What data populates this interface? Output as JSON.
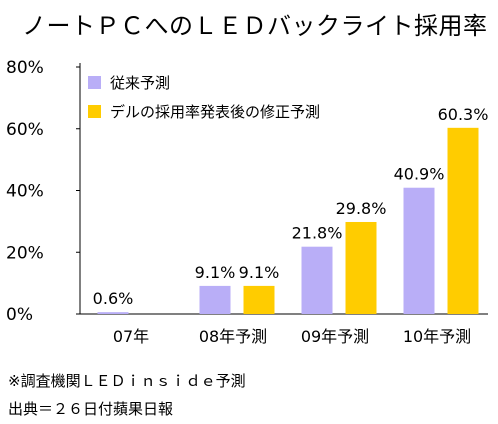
{
  "chart_data": {
    "type": "bar",
    "title": "ノートＰＣへのＬＥＤバックライト採用率",
    "categories": [
      "07年",
      "08年予測",
      "09年予測",
      "10年予測"
    ],
    "ylim": [
      0,
      80
    ],
    "yticks": [
      0,
      20,
      40,
      60,
      80
    ],
    "ytick_labels": [
      "0%",
      "20%",
      "40%",
      "60%",
      "80%"
    ],
    "legend_position": "top-left",
    "series": [
      {
        "name": "従来予測",
        "color": "#b9aef7",
        "values": [
          0.6,
          9.1,
          21.8,
          40.9
        ],
        "labels": [
          "0.6%",
          "9.1%",
          "21.8%",
          "40.9%"
        ]
      },
      {
        "name": "デルの採用率発表後の修正予測",
        "color": "#ffcc00",
        "values": [
          null,
          9.1,
          29.8,
          60.3
        ],
        "labels": [
          null,
          "9.1%",
          "29.8%",
          "60.3%"
        ]
      }
    ]
  },
  "footnotes": {
    "source1": "※調査機関ＬＥＤｉｎｓｉｄｅ予測",
    "source2": "出典＝２６日付蘋果日報"
  }
}
